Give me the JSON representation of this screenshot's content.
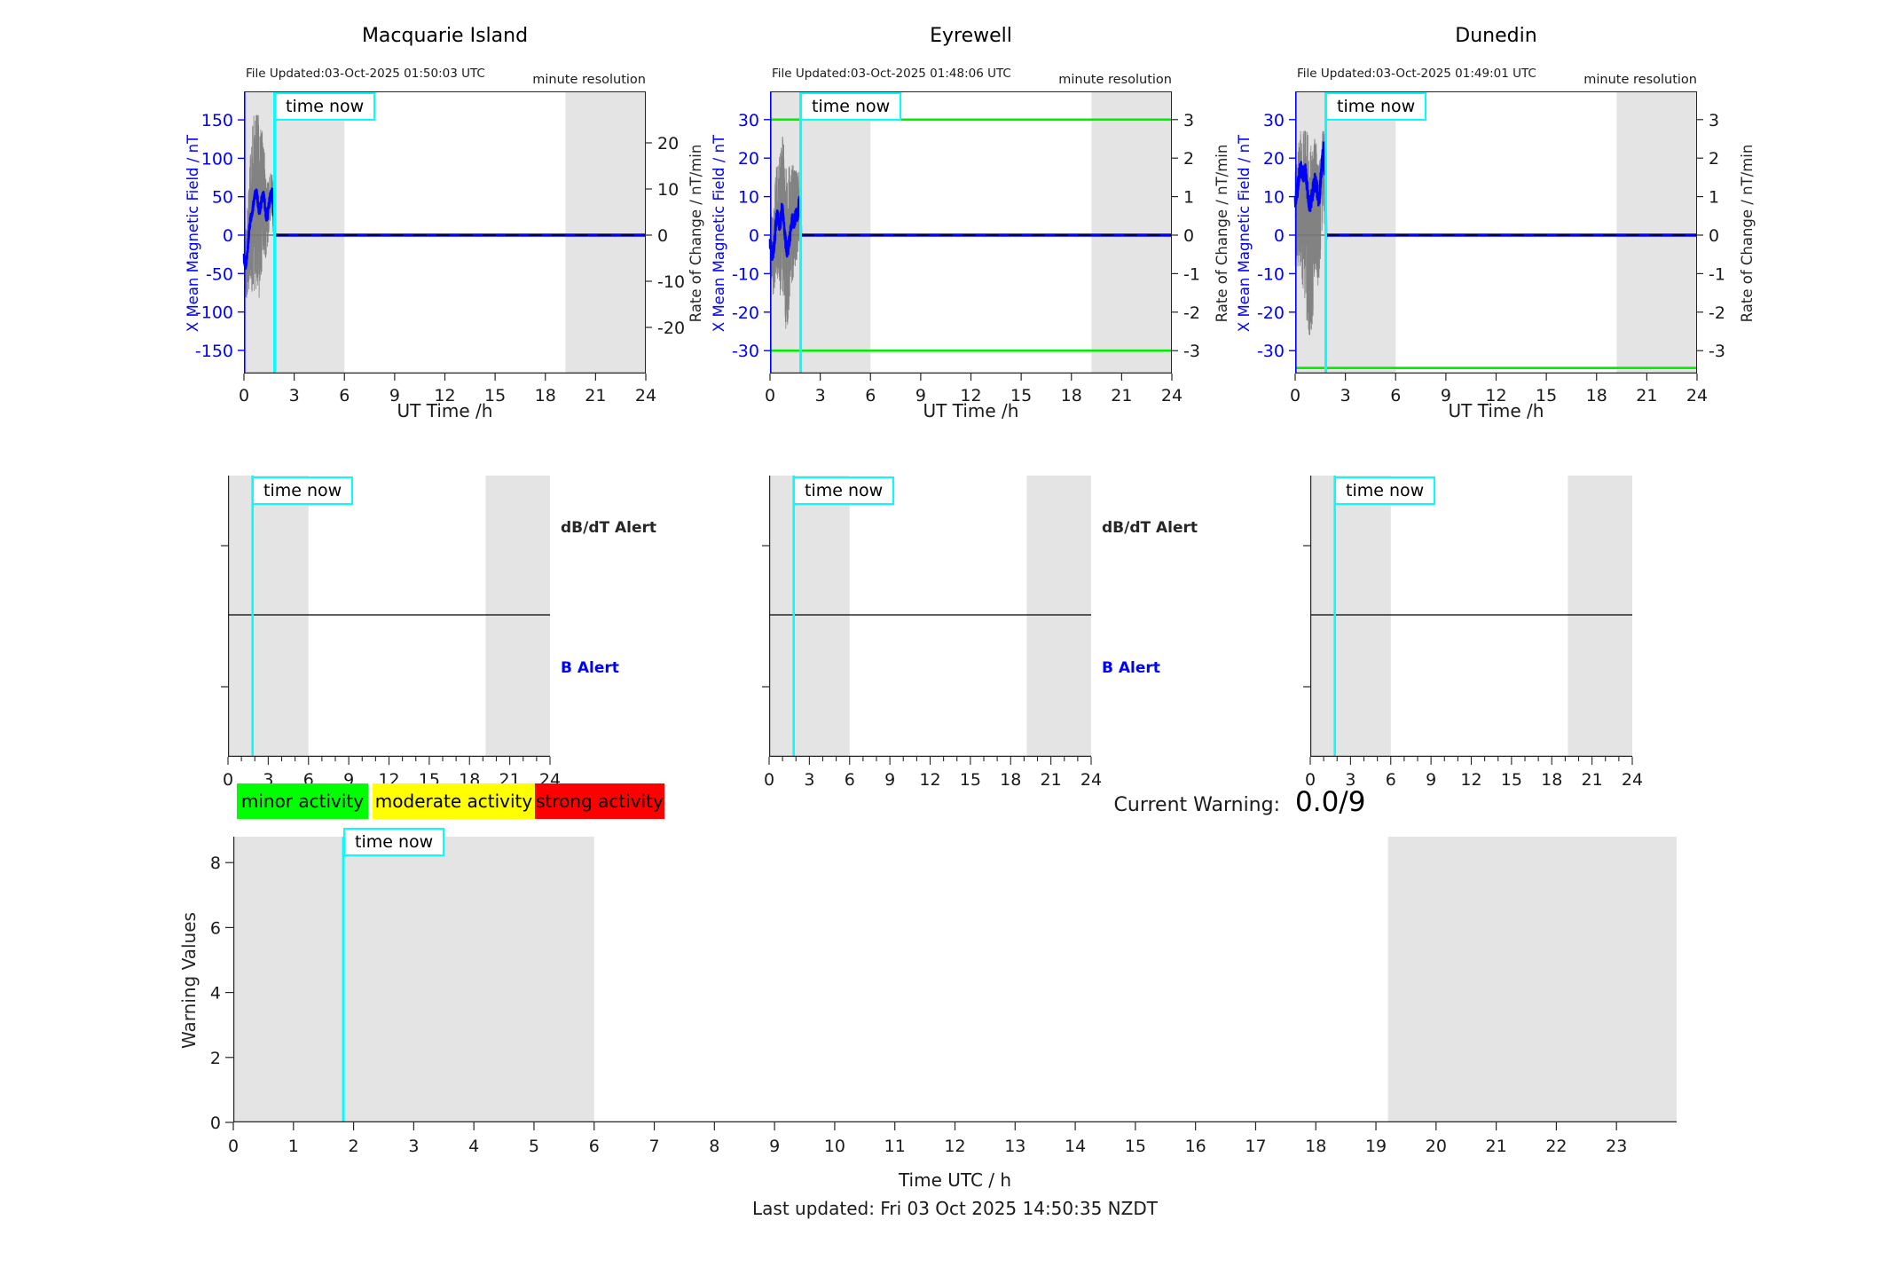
{
  "colors": {
    "accent_blue": "#0000ff",
    "time_now_cyan": "#00ffff",
    "threshold_green": "#00ee00",
    "night_shading_gray": "#e4e4e4",
    "legend_green": "#00ff00",
    "legend_yellow": "#ffff00",
    "legend_red": "#ff0000"
  },
  "strings": {
    "time_now": "time now",
    "minute_resolution": "minute resolution",
    "db_dt_alert": "dB/dT Alert",
    "b_alert": "B Alert",
    "current_warning_label": "Current Warning:",
    "current_warning_value": "0.0/9",
    "footer": "Last updated: Fri 03 Oct 2025 14:50:35 NZDT"
  },
  "legend": [
    {
      "label": "minor activity",
      "color": "#00ff00"
    },
    {
      "label": "moderate activity",
      "color": "#ffff00"
    },
    {
      "label": "strong activity",
      "color": "#ff0000"
    }
  ],
  "chart_data": [
    {
      "type": "line",
      "station": "Macquarie Island",
      "file_updated": "File Updated:03-Oct-2025 01:50:03 UTC",
      "resolution_note": "minute resolution",
      "xlabel": "UT Time /h",
      "xlim": [
        0,
        24
      ],
      "x_ticks": [
        0,
        3,
        6,
        9,
        12,
        15,
        18,
        21,
        24
      ],
      "left_ylabel": "X Mean Magnetic Field / nT",
      "left_yticks": [
        150,
        100,
        50,
        0,
        -50,
        -100,
        -150
      ],
      "left_ylim": [
        -185,
        187
      ],
      "right_ylabel": "Rate of Change / nT/min",
      "right_yticks": [
        20,
        10,
        0,
        -10,
        -20
      ],
      "right_ylim": [
        -31,
        31
      ],
      "night_shading": [
        [
          0,
          6
        ],
        [
          19.2,
          24
        ]
      ],
      "time_now_h": 1.83,
      "threshold_lines": [],
      "series": [
        {
          "name": "X mean measured",
          "points": [
            [
              0,
              -30
            ],
            [
              0.05,
              -36
            ],
            [
              0.1,
              -40
            ],
            [
              0.18,
              -28
            ],
            [
              0.26,
              -8
            ],
            [
              0.33,
              10
            ],
            [
              0.4,
              22
            ],
            [
              0.48,
              30
            ],
            [
              0.55,
              38
            ],
            [
              0.62,
              48
            ],
            [
              0.7,
              55
            ],
            [
              0.78,
              52
            ],
            [
              0.85,
              40
            ],
            [
              0.92,
              30
            ],
            [
              1.0,
              38
            ],
            [
              1.08,
              48
            ],
            [
              1.15,
              52
            ],
            [
              1.22,
              46
            ],
            [
              1.3,
              28
            ],
            [
              1.38,
              22
            ],
            [
              1.45,
              33
            ],
            [
              1.52,
              45
            ],
            [
              1.6,
              52
            ],
            [
              1.68,
              55
            ],
            [
              1.74,
              42
            ],
            [
              1.79,
              18
            ],
            [
              1.83,
              -3
            ],
            [
              1.85,
              0
            ]
          ]
        },
        {
          "name": "flat zero after time now",
          "value": 0,
          "from": 1.85,
          "to": 24
        }
      ],
      "noise": {
        "seed": 11,
        "base": 22,
        "peak": 105,
        "center": 0.75,
        "sigma": 0.38,
        "clip": [
          -132,
          156
        ],
        "bias": 0.5,
        "jitter": 6
      }
    },
    {
      "type": "line",
      "station": "Eyrewell",
      "file_updated": "File Updated:03-Oct-2025 01:48:06 UTC",
      "resolution_note": "minute resolution",
      "xlabel": "UT Time /h",
      "xlim": [
        0,
        24
      ],
      "x_ticks": [
        0,
        3,
        6,
        9,
        12,
        15,
        18,
        21,
        24
      ],
      "left_ylabel": "X Mean Magnetic Field / nT",
      "left_yticks": [
        30,
        20,
        10,
        0,
        -10,
        -20,
        -30
      ],
      "left_ylim": [
        -37,
        37
      ],
      "right_ylabel": "Rate of Change / nT/min",
      "right_yticks": [
        3,
        2,
        1,
        0,
        -1,
        -2,
        -3
      ],
      "right_ylim": [
        -3.7,
        3.7
      ],
      "night_shading": [
        [
          0,
          6
        ],
        [
          19.2,
          24
        ]
      ],
      "time_now_h": 1.83,
      "threshold_lines": [
        30,
        -30
      ],
      "series": [
        {
          "name": "X mean measured",
          "points": [
            [
              0,
              -2
            ],
            [
              0.08,
              -4
            ],
            [
              0.15,
              -5
            ],
            [
              0.25,
              -3
            ],
            [
              0.33,
              2
            ],
            [
              0.42,
              5
            ],
            [
              0.5,
              4
            ],
            [
              0.58,
              2
            ],
            [
              0.65,
              5
            ],
            [
              0.72,
              7
            ],
            [
              0.8,
              5
            ],
            [
              0.88,
              1
            ],
            [
              0.95,
              -3
            ],
            [
              1.02,
              -4
            ],
            [
              1.1,
              -3
            ],
            [
              1.18,
              -1
            ],
            [
              1.25,
              2
            ],
            [
              1.33,
              4
            ],
            [
              1.4,
              3
            ],
            [
              1.48,
              4
            ],
            [
              1.55,
              5
            ],
            [
              1.62,
              5
            ],
            [
              1.7,
              7
            ],
            [
              1.76,
              9
            ],
            [
              1.8,
              8
            ],
            [
              1.83,
              3
            ],
            [
              1.85,
              0
            ]
          ]
        },
        {
          "name": "flat zero after time now",
          "value": 0,
          "from": 1.85,
          "to": 24
        }
      ],
      "noise": {
        "seed": 23,
        "base": 7,
        "peak": 15,
        "center": 0.9,
        "sigma": 0.45,
        "clip": [
          -26,
          26
        ],
        "bias": 0.5,
        "jitter": 1.8
      }
    },
    {
      "type": "line",
      "station": "Dunedin",
      "file_updated": "File Updated:03-Oct-2025 01:49:01 UTC",
      "resolution_note": "minute resolution",
      "xlabel": "UT Time /h",
      "xlim": [
        0,
        24
      ],
      "x_ticks": [
        0,
        3,
        6,
        9,
        12,
        15,
        18,
        21,
        24
      ],
      "left_ylabel": "X Mean Magnetic Field / nT",
      "left_yticks": [
        30,
        20,
        10,
        0,
        -10,
        -20,
        -30
      ],
      "left_ylim": [
        -37,
        37
      ],
      "right_ylabel": "Rate of Change / nT/min",
      "right_yticks": [
        3,
        2,
        1,
        0,
        -1,
        -2,
        -3
      ],
      "right_ylim": [
        -3.7,
        3.7
      ],
      "night_shading": [
        [
          0,
          6
        ],
        [
          19.2,
          24
        ]
      ],
      "time_now_h": 1.83,
      "threshold_lines": [
        -34.5
      ],
      "series": [
        {
          "name": "X mean measured",
          "points": [
            [
              0,
              9
            ],
            [
              0.08,
              10
            ],
            [
              0.15,
              12
            ],
            [
              0.22,
              15
            ],
            [
              0.3,
              17
            ],
            [
              0.38,
              17
            ],
            [
              0.45,
              16
            ],
            [
              0.52,
              16
            ],
            [
              0.6,
              17
            ],
            [
              0.65,
              15
            ],
            [
              0.7,
              13
            ],
            [
              0.78,
              10
            ],
            [
              0.85,
              8
            ],
            [
              0.92,
              8
            ],
            [
              1.0,
              10
            ],
            [
              1.08,
              12
            ],
            [
              1.15,
              14
            ],
            [
              1.22,
              14
            ],
            [
              1.3,
              12
            ],
            [
              1.38,
              9
            ],
            [
              1.45,
              10
            ],
            [
              1.52,
              14
            ],
            [
              1.6,
              18
            ],
            [
              1.66,
              22
            ],
            [
              1.7,
              24
            ],
            [
              1.74,
              17
            ],
            [
              1.78,
              20
            ],
            [
              1.81,
              25
            ],
            [
              1.83,
              8
            ],
            [
              1.85,
              0
            ]
          ]
        },
        {
          "name": "flat zero after time now",
          "value": 0,
          "from": 1.85,
          "to": 24
        }
      ],
      "noise": {
        "seed": 37,
        "base": 9,
        "peak": 17,
        "center": 0.8,
        "sigma": 0.45,
        "clip": [
          -26,
          27
        ],
        "bias": 0.7,
        "jitter": 2
      }
    },
    {
      "type": "alert-timeline",
      "station": "Macquarie Island",
      "xlim": [
        0,
        24
      ],
      "x_ticks": [
        0,
        3,
        6,
        9,
        12,
        15,
        18,
        21,
        24
      ],
      "labels_right": [
        "dB/dT Alert",
        "B Alert"
      ],
      "night_shading": [
        [
          0,
          6
        ],
        [
          19.2,
          24
        ]
      ],
      "time_now_h": 1.83,
      "events": []
    },
    {
      "type": "alert-timeline",
      "station": "Eyrewell",
      "xlim": [
        0,
        24
      ],
      "x_ticks": [
        0,
        3,
        6,
        9,
        12,
        15,
        18,
        21,
        24
      ],
      "labels_right": [
        "dB/dT Alert",
        "B Alert"
      ],
      "night_shading": [
        [
          0,
          6
        ],
        [
          19.2,
          24
        ]
      ],
      "time_now_h": 1.83,
      "events": []
    },
    {
      "type": "alert-timeline",
      "station": "Dunedin",
      "xlim": [
        0,
        24
      ],
      "x_ticks": [
        0,
        3,
        6,
        9,
        12,
        15,
        18,
        21,
        24
      ],
      "labels_right": [],
      "night_shading": [
        [
          0,
          6
        ],
        [
          19.2,
          24
        ]
      ],
      "time_now_h": 1.83,
      "events": []
    },
    {
      "type": "line",
      "title": "Warning Values",
      "ylabel": "Warning Values",
      "xlabel": "Time UTC / h",
      "xlim": [
        0,
        24
      ],
      "x_ticks": [
        0,
        1,
        2,
        3,
        4,
        5,
        6,
        7,
        8,
        9,
        10,
        11,
        12,
        13,
        14,
        15,
        16,
        17,
        18,
        19,
        20,
        21,
        22,
        23
      ],
      "yticks": [
        0,
        2,
        4,
        6,
        8
      ],
      "ylim": [
        0,
        8.8
      ],
      "night_shading": [
        [
          0,
          6
        ],
        [
          19.2,
          24
        ]
      ],
      "time_now_h": 1.83,
      "current_warning": "0.0/9",
      "series": []
    }
  ]
}
